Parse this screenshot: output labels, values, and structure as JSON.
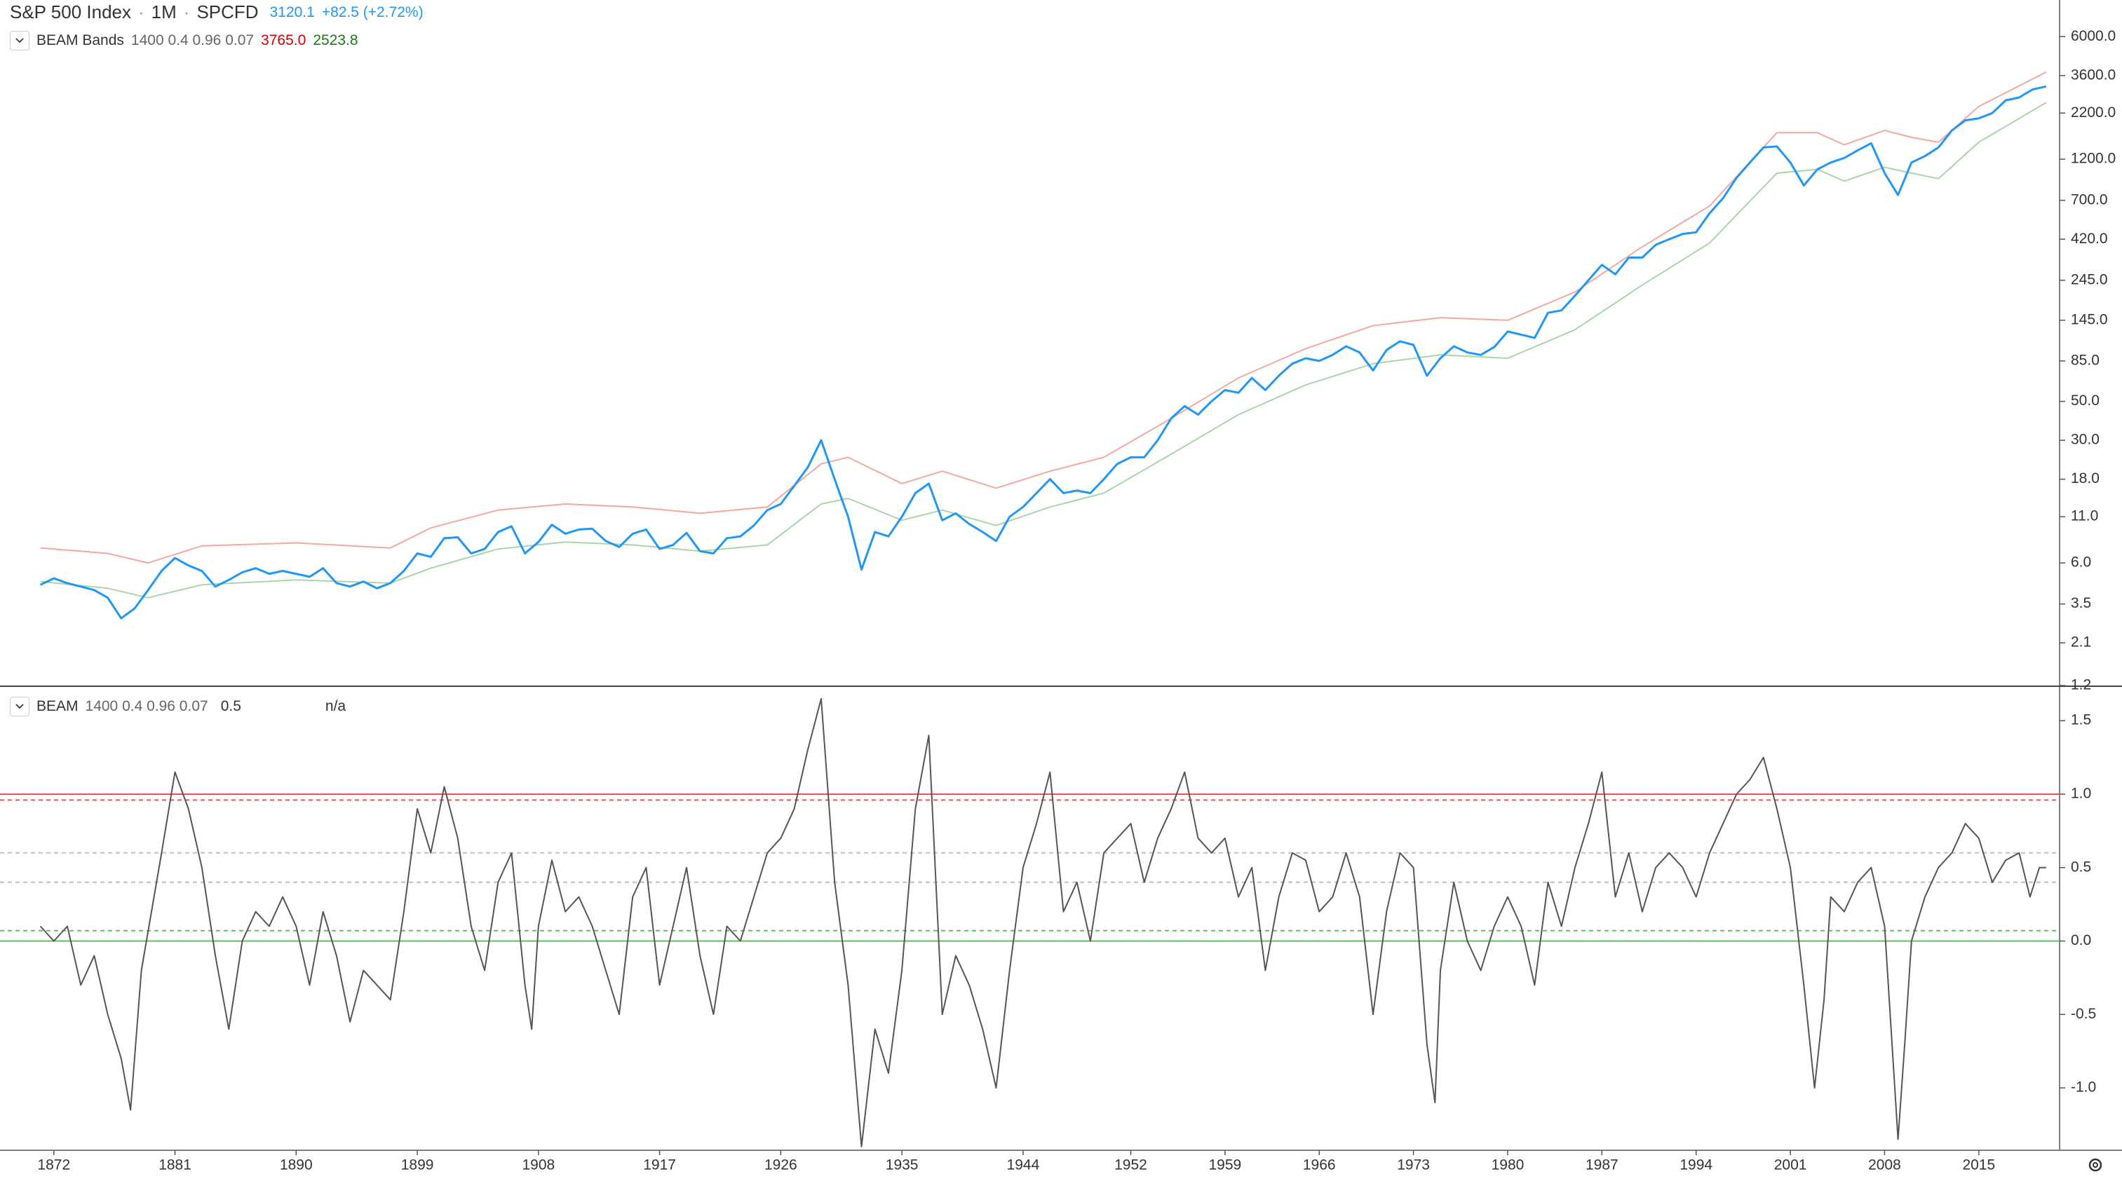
{
  "chart_data": [
    {
      "type": "line",
      "interval": "1M",
      "exchange": "SPCFD",
      "last": "3120.1",
      "change": "+82.5 (+2.72%)",
      "indicator": {
        "name": "BEAM Bands",
        "params": "1400 0.4 0.96 0.07",
        "upper": "3765.0",
        "lower": "2523.8"
      },
      "log_scale": true,
      "xlim": [
        1868,
        2021
      ],
      "ylim": [
        1.2,
        9700
      ],
      "yticks": [
        {
          "value": 6000,
          "label": "6000.0"
        },
        {
          "value": 3600,
          "label": "3600.0"
        },
        {
          "value": 2200,
          "label": "2200.0"
        },
        {
          "value": 1200,
          "label": "1200.0"
        },
        {
          "value": 700,
          "label": "700.0"
        },
        {
          "value": 420,
          "label": "420.0"
        },
        {
          "value": 245,
          "label": "245.0"
        },
        {
          "value": 145,
          "label": "145.0"
        },
        {
          "value": 85,
          "label": "85.0"
        },
        {
          "value": 50,
          "label": "50.0"
        },
        {
          "value": 30,
          "label": "30.0"
        },
        {
          "value": 18,
          "label": "18.0"
        },
        {
          "value": 11,
          "label": "11.0"
        },
        {
          "value": 6,
          "label": "6.0"
        },
        3.5,
        2.1,
        1.2
      ],
      "series": [
        {
          "color": "#f4a7a3",
          "x": [
            1871,
            1876,
            1879,
            1883,
            1890,
            1897,
            1900,
            1905,
            1910,
            1915,
            1920,
            1925,
            1929,
            1931,
            1935,
            1938,
            1942,
            1946,
            1950,
            1955,
            1960,
            1965,
            1970,
            1975,
            1980,
            1985,
            1990,
            1995,
            2000,
            2003,
            2005,
            2008,
            2010,
            2012,
            2015,
            2020
          ],
          "values": [
            7.3,
            6.8,
            6.0,
            7.5,
            7.8,
            7.3,
            9.5,
            12,
            13,
            12.5,
            11.5,
            12.5,
            22,
            24,
            17,
            20,
            16,
            20,
            24,
            40,
            68,
            100,
            135,
            150,
            145,
            210,
            380,
            650,
            1700,
            1700,
            1450,
            1750,
            1600,
            1500,
            2400,
            3765
          ]
        },
        {
          "color": "#a8d5a9",
          "x": [
            1871,
            1876,
            1879,
            1883,
            1890,
            1897,
            1900,
            1905,
            1910,
            1915,
            1920,
            1925,
            1929,
            1931,
            1935,
            1938,
            1942,
            1946,
            1950,
            1955,
            1960,
            1965,
            1970,
            1975,
            1980,
            1985,
            1990,
            1995,
            2000,
            2003,
            2005,
            2008,
            2010,
            2012,
            2015,
            2020
          ],
          "values": [
            4.7,
            4.3,
            3.8,
            4.5,
            4.8,
            4.6,
            5.6,
            7.2,
            7.9,
            7.6,
            7.0,
            7.6,
            13,
            14,
            10.5,
            12,
            9.8,
            12.5,
            15,
            25,
            42,
            62,
            82,
            92,
            88,
            128,
            230,
            400,
            1000,
            1050,
            900,
            1080,
            1000,
            930,
            1500,
            2523.8
          ]
        },
        {
          "name": "S&P 500 Index",
          "color": "#2196f3",
          "x": [
            1871,
            1872,
            1873,
            1874,
            1875,
            1876,
            1877,
            1878,
            1879,
            1880,
            1881,
            1882,
            1883,
            1884,
            1885,
            1886,
            1887,
            1888,
            1889,
            1890,
            1891,
            1892,
            1893,
            1894,
            1895,
            1896,
            1897,
            1898,
            1899,
            1900,
            1901,
            1902,
            1903,
            1904,
            1905,
            1906,
            1907,
            1908,
            1909,
            1910,
            1911,
            1912,
            1913,
            1914,
            1915,
            1916,
            1917,
            1918,
            1919,
            1920,
            1921,
            1922,
            1923,
            1924,
            1925,
            1926,
            1927,
            1928,
            1929,
            1930,
            1931,
            1932,
            1933,
            1934,
            1935,
            1936,
            1937,
            1938,
            1939,
            1940,
            1941,
            1942,
            1943,
            1944,
            1945,
            1946,
            1947,
            1948,
            1949,
            1950,
            1951,
            1952,
            1953,
            1954,
            1955,
            1956,
            1957,
            1958,
            1959,
            1960,
            1961,
            1962,
            1963,
            1964,
            1965,
            1966,
            1967,
            1968,
            1969,
            1970,
            1971,
            1972,
            1973,
            1974,
            1975,
            1976,
            1977,
            1978,
            1979,
            1980,
            1981,
            1982,
            1983,
            1984,
            1985,
            1986,
            1987,
            1988,
            1989,
            1990,
            1991,
            1992,
            1993,
            1994,
            1995,
            1996,
            1997,
            1998,
            1999,
            2000,
            2001,
            2002,
            2003,
            2004,
            2005,
            2006,
            2007,
            2008,
            2009,
            2010,
            2011,
            2012,
            2013,
            2014,
            2015,
            2016,
            2017,
            2018,
            2019,
            2020
          ],
          "values": [
            4.5,
            4.9,
            4.6,
            4.4,
            4.2,
            3.8,
            2.9,
            3.3,
            4.2,
            5.4,
            6.4,
            5.8,
            5.4,
            4.4,
            4.8,
            5.3,
            5.6,
            5.2,
            5.4,
            5.2,
            5.0,
            5.6,
            4.6,
            4.4,
            4.7,
            4.3,
            4.6,
            5.4,
            6.8,
            6.5,
            8.3,
            8.4,
            6.8,
            7.2,
            9.0,
            9.7,
            6.8,
            7.9,
            9.9,
            8.8,
            9.3,
            9.4,
            8.0,
            7.4,
            8.8,
            9.3,
            7.2,
            7.6,
            8.9,
            7.0,
            6.8,
            8.3,
            8.5,
            9.8,
            12.0,
            13.0,
            16.5,
            21,
            30,
            18,
            11,
            5.5,
            9,
            8.5,
            11,
            15,
            17,
            10.5,
            11.5,
            10,
            9,
            8,
            11,
            12.5,
            15,
            18,
            15,
            15.5,
            15,
            18,
            22,
            24,
            24,
            30,
            40,
            47,
            42,
            50,
            58,
            56,
            68,
            58,
            70,
            82,
            88,
            85,
            92,
            103,
            95,
            75,
            98,
            110,
            105,
            70,
            88,
            103,
            95,
            92,
            102,
            125,
            120,
            115,
            160,
            165,
            200,
            245,
            300,
            265,
            330,
            330,
            390,
            420,
            450,
            460,
            590,
            720,
            940,
            1150,
            1400,
            1420,
            1150,
            850,
            1050,
            1150,
            1220,
            1350,
            1480,
            1000,
            750,
            1150,
            1250,
            1400,
            1750,
            2000,
            2050,
            2200,
            2600,
            2700,
            3000,
            3120.1
          ]
        }
      ]
    },
    {
      "type": "line",
      "indicator": {
        "name": "BEAM",
        "params": "1400 0.4 0.96 0.07",
        "value": "0.5",
        "extra": "n/a"
      },
      "xlim": [
        1868,
        2021
      ],
      "xticks": [
        1872,
        1881,
        1890,
        1899,
        1908,
        1917,
        1926,
        1935,
        1944,
        1952,
        1959,
        1966,
        1973,
        1980,
        1987,
        1994,
        2001,
        2008,
        2015
      ],
      "ylim": [
        -1.42,
        1.73
      ],
      "yticks": [
        1.5,
        {
          "value": 1,
          "label": "1.0"
        },
        0.5,
        {
          "value": 0,
          "label": "0.0"
        },
        -0.5,
        {
          "value": -1,
          "label": "-1.0"
        }
      ],
      "levels": [
        {
          "value": 1,
          "color": "#ef5350",
          "dashed": false
        },
        {
          "value": 0.96,
          "color": "#ef5350",
          "dashed": true
        },
        {
          "value": 0.6,
          "color": "#bdbdbd",
          "dashed": true
        },
        {
          "value": 0.4,
          "color": "#bdbdbd",
          "dashed": true
        },
        {
          "value": 0.07,
          "color": "#66bb6a",
          "dashed": true
        },
        {
          "value": 0,
          "color": "#66bb6a",
          "dashed": false
        }
      ],
      "series": [
        {
          "color": "#555555",
          "x": [
            1871,
            1872,
            1873,
            1874,
            1875,
            1876,
            1877,
            1877.7,
            1878.5,
            1880,
            1881,
            1882,
            1883,
            1884,
            1885,
            1886,
            1887,
            1888,
            1889,
            1890,
            1891,
            1892,
            1893,
            1894,
            1895,
            1896,
            1897,
            1898,
            1899,
            1900,
            1901,
            1902,
            1903,
            1904,
            1905,
            1906,
            1907,
            1907.5,
            1908,
            1909,
            1910,
            1911,
            1912,
            1913,
            1914,
            1915,
            1916,
            1917,
            1918,
            1919,
            1920,
            1921,
            1922,
            1923,
            1924,
            1925,
            1926,
            1927,
            1928,
            1929,
            1930,
            1931,
            1932,
            1933,
            1934,
            1935,
            1936,
            1937,
            1938,
            1939,
            1940,
            1941,
            1942,
            1943,
            1944,
            1945,
            1946,
            1947,
            1948,
            1949,
            1950,
            1951,
            1952,
            1953,
            1954,
            1955,
            1956,
            1957,
            1958,
            1959,
            1960,
            1961,
            1962,
            1963,
            1964,
            1965,
            1966,
            1967,
            1968,
            1969,
            1970,
            1971,
            1972,
            1973,
            1974,
            1974.6,
            1975,
            1976,
            1977,
            1978,
            1979,
            1980,
            1981,
            1982,
            1983,
            1984,
            1985,
            1986,
            1987,
            1988,
            1989,
            1990,
            1991,
            1992,
            1993,
            1994,
            1995,
            1996,
            1997,
            1998,
            1999,
            2000,
            2001,
            2002,
            2002.8,
            2003.5,
            2004,
            2005,
            2006,
            2007,
            2008,
            2009,
            2009.5,
            2010,
            2011,
            2012,
            2013,
            2014,
            2015,
            2016,
            2017,
            2018,
            2018.8,
            2019.5,
            2020
          ],
          "values": [
            0.1,
            0.0,
            0.1,
            -0.3,
            -0.1,
            -0.5,
            -0.8,
            -1.15,
            -0.2,
            0.6,
            1.15,
            0.9,
            0.5,
            -0.1,
            -0.6,
            0.0,
            0.2,
            0.1,
            0.3,
            0.1,
            -0.3,
            0.2,
            -0.1,
            -0.55,
            -0.2,
            -0.3,
            -0.4,
            0.2,
            0.9,
            0.6,
            1.05,
            0.7,
            0.1,
            -0.2,
            0.4,
            0.6,
            -0.3,
            -0.6,
            0.1,
            0.55,
            0.2,
            0.3,
            0.1,
            -0.2,
            -0.5,
            0.3,
            0.5,
            -0.3,
            0.1,
            0.5,
            -0.1,
            -0.5,
            0.1,
            0.0,
            0.3,
            0.6,
            0.7,
            0.9,
            1.3,
            1.65,
            0.4,
            -0.3,
            -1.4,
            -0.6,
            -0.9,
            -0.2,
            0.9,
            1.4,
            -0.5,
            -0.1,
            -0.3,
            -0.6,
            -1.0,
            -0.2,
            0.5,
            0.8,
            1.15,
            0.2,
            0.4,
            0.0,
            0.6,
            0.7,
            0.8,
            0.4,
            0.7,
            0.9,
            1.15,
            0.7,
            0.6,
            0.7,
            0.3,
            0.5,
            -0.2,
            0.3,
            0.6,
            0.55,
            0.2,
            0.3,
            0.6,
            0.3,
            -0.5,
            0.2,
            0.6,
            0.5,
            -0.7,
            -1.1,
            -0.2,
            0.4,
            0.0,
            -0.2,
            0.1,
            0.3,
            0.1,
            -0.3,
            0.4,
            0.1,
            0.5,
            0.8,
            1.15,
            0.3,
            0.6,
            0.2,
            0.5,
            0.6,
            0.5,
            0.3,
            0.6,
            0.8,
            1.0,
            1.1,
            1.25,
            0.9,
            0.5,
            -0.3,
            -1.0,
            -0.4,
            0.3,
            0.2,
            0.4,
            0.5,
            0.1,
            -1.35,
            -0.7,
            0.0,
            0.3,
            0.5,
            0.6,
            0.8,
            0.7,
            0.4,
            0.55,
            0.6,
            0.3,
            0.5,
            0.5
          ]
        }
      ]
    }
  ]
}
